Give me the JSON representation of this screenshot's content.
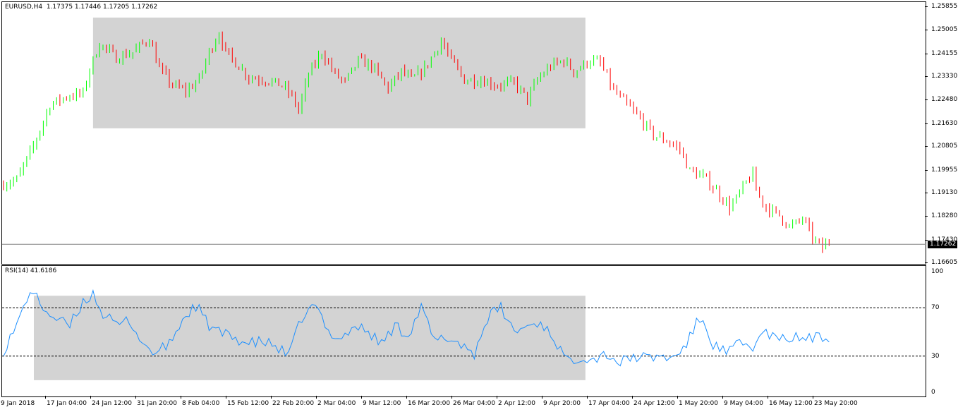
{
  "main_title": "EURUSD,H4  1.17375 1.17446 1.17205 1.17262",
  "rsi_title": "RSI(14) 41.6186",
  "current_price_label": "1.17262",
  "price_axis_labels": [
    "1.25855",
    "1.25005",
    "1.24155",
    "1.23330",
    "1.22480",
    "1.21630",
    "1.20805",
    "1.19955",
    "1.19130",
    "1.18280",
    "1.17430",
    "1.16605"
  ],
  "rsi_axis_labels": [
    "100",
    "70",
    "30",
    "0"
  ],
  "time_axis_labels": [
    "9 Jan 2018",
    "17 Jan 04:00",
    "24 Jan 12:00",
    "31 Jan 20:00",
    "8 Feb 04:00",
    "15 Feb 12:00",
    "22 Feb 20:00",
    "2 Mar 04:00",
    "9 Mar 12:00",
    "16 Mar 20:00",
    "26 Mar 04:00",
    "2 Apr 12:00",
    "9 Apr 20:00",
    "17 Apr 04:00",
    "24 Apr 12:00",
    "1 May 20:00",
    "9 May 04:00",
    "16 May 12:00",
    "23 May 20:00"
  ],
  "colors": {
    "bull": "#00ff00",
    "bear": "#ff0000",
    "rsi_line": "#1e90ff",
    "range_box": "#d3d3d3",
    "text": "#000000"
  },
  "chart_data": [
    {
      "type": "candlestick",
      "symbol": "EURUSD",
      "timeframe": "H4",
      "last_ohlc": {
        "open": 1.17375,
        "high": 1.17446,
        "low": 1.17205,
        "close": 1.17262
      },
      "ylim": [
        1.16605,
        1.25855
      ],
      "current_price": 1.17262,
      "grid": false,
      "path_knots": [
        [
          0,
          1.194
        ],
        [
          5,
          1.196
        ],
        [
          10,
          1.208
        ],
        [
          15,
          1.223
        ],
        [
          20,
          1.226
        ],
        [
          25,
          1.227
        ],
        [
          27,
          1.236
        ],
        [
          30,
          1.245
        ],
        [
          35,
          1.24
        ],
        [
          40,
          1.242
        ],
        [
          45,
          1.247
        ],
        [
          48,
          1.236
        ],
        [
          52,
          1.23
        ],
        [
          56,
          1.228
        ],
        [
          60,
          1.232
        ],
        [
          63,
          1.242
        ],
        [
          66,
          1.249
        ],
        [
          68,
          1.242
        ],
        [
          72,
          1.237
        ],
        [
          75,
          1.233
        ],
        [
          80,
          1.232
        ],
        [
          85,
          1.23
        ],
        [
          88,
          1.226
        ],
        [
          90,
          1.221
        ],
        [
          93,
          1.234
        ],
        [
          97,
          1.242
        ],
        [
          101,
          1.234
        ],
        [
          104,
          1.231
        ],
        [
          108,
          1.239
        ],
        [
          112,
          1.237
        ],
        [
          117,
          1.229
        ],
        [
          121,
          1.235
        ],
        [
          124,
          1.232
        ],
        [
          128,
          1.236
        ],
        [
          133,
          1.246
        ],
        [
          136,
          1.239
        ],
        [
          140,
          1.232
        ],
        [
          145,
          1.232
        ],
        [
          150,
          1.23
        ],
        [
          155,
          1.231
        ],
        [
          159,
          1.225
        ],
        [
          162,
          1.232
        ],
        [
          166,
          1.237
        ],
        [
          170,
          1.239
        ],
        [
          173,
          1.235
        ],
        [
          178,
          1.239
        ],
        [
          181,
          1.238
        ],
        [
          185,
          1.228
        ],
        [
          189,
          1.223
        ],
        [
          193,
          1.218
        ],
        [
          197,
          1.212
        ],
        [
          201,
          1.21
        ],
        [
          205,
          1.207
        ],
        [
          208,
          1.199
        ],
        [
          212,
          1.197
        ],
        [
          216,
          1.192
        ],
        [
          220,
          1.186
        ],
        [
          222,
          1.189
        ],
        [
          225,
          1.195
        ],
        [
          227,
          1.198
        ],
        [
          228,
          1.192
        ],
        [
          231,
          1.186
        ],
        [
          235,
          1.183
        ],
        [
          238,
          1.179
        ],
        [
          240,
          1.18
        ],
        [
          242,
          1.182
        ],
        [
          245,
          1.175
        ],
        [
          248,
          1.171
        ],
        [
          249,
          1.173
        ]
      ],
      "range_box": {
        "x_from": "24 Jan 12:00",
        "x_to": "17 Apr 04:00",
        "y_from": 1.2145,
        "y_to": 1.2545
      }
    },
    {
      "type": "line",
      "title": "RSI(14)",
      "last_value": 41.6186,
      "ylim": [
        0,
        100
      ],
      "levels": [
        70,
        30
      ],
      "path_knots": [
        [
          0,
          35
        ],
        [
          4,
          55
        ],
        [
          8,
          85
        ],
        [
          12,
          70
        ],
        [
          16,
          60
        ],
        [
          20,
          55
        ],
        [
          24,
          75
        ],
        [
          27,
          82
        ],
        [
          30,
          65
        ],
        [
          34,
          55
        ],
        [
          38,
          60
        ],
        [
          42,
          40
        ],
        [
          46,
          32
        ],
        [
          50,
          40
        ],
        [
          54,
          60
        ],
        [
          58,
          72
        ],
        [
          62,
          55
        ],
        [
          66,
          48
        ],
        [
          70,
          45
        ],
        [
          74,
          40
        ],
        [
          78,
          42
        ],
        [
          82,
          38
        ],
        [
          86,
          30
        ],
        [
          90,
          62
        ],
        [
          94,
          72
        ],
        [
          98,
          50
        ],
        [
          102,
          45
        ],
        [
          106,
          55
        ],
        [
          110,
          50
        ],
        [
          114,
          40
        ],
        [
          118,
          55
        ],
        [
          122,
          48
        ],
        [
          126,
          70
        ],
        [
          130,
          42
        ],
        [
          134,
          45
        ],
        [
          138,
          40
        ],
        [
          142,
          32
        ],
        [
          146,
          62
        ],
        [
          150,
          70
        ],
        [
          154,
          50
        ],
        [
          158,
          55
        ],
        [
          162,
          58
        ],
        [
          166,
          45
        ],
        [
          170,
          25
        ],
        [
          174,
          30
        ],
        [
          178,
          28
        ],
        [
          182,
          32
        ],
        [
          186,
          24
        ],
        [
          190,
          30
        ],
        [
          194,
          28
        ],
        [
          198,
          30
        ],
        [
          202,
          28
        ],
        [
          206,
          40
        ],
        [
          210,
          62
        ],
        [
          214,
          40
        ],
        [
          218,
          32
        ],
        [
          222,
          40
        ],
        [
          226,
          38
        ],
        [
          230,
          50
        ],
        [
          234,
          42
        ],
        [
          236,
          45
        ]
      ],
      "range_box": {
        "x_from": "17 Jan 04:00",
        "x_to": "17 Apr 04:00",
        "y_from": 10,
        "y_to": 80
      }
    }
  ]
}
